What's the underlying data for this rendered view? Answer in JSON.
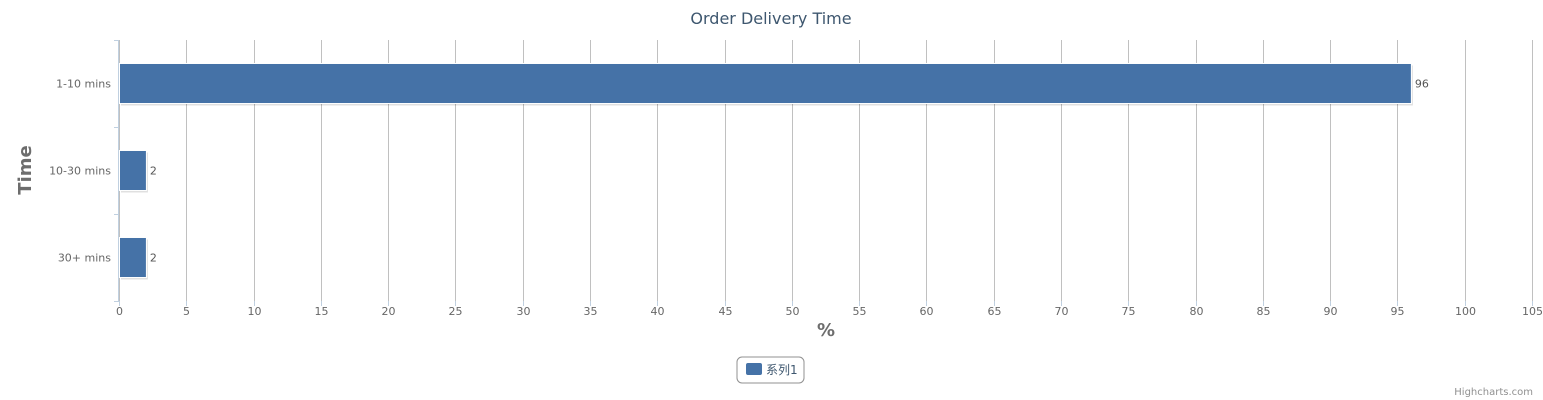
{
  "chart_data": {
    "type": "bar",
    "orientation": "horizontal",
    "title": "Order Delivery Time",
    "xlabel": "Time",
    "ylabel": "%",
    "categories": [
      "1-10 mins",
      "10-30 mins",
      "30+ mins"
    ],
    "series": [
      {
        "name": "系列1",
        "values": [
          96,
          2,
          2
        ],
        "color": "#4572a7"
      }
    ],
    "value_ticks": [
      0,
      5,
      10,
      15,
      20,
      25,
      30,
      35,
      40,
      45,
      50,
      55,
      60,
      65,
      70,
      75,
      80,
      85,
      90,
      95,
      100,
      105
    ],
    "ylim": [
      0,
      105
    ],
    "grid": true,
    "data_labels": true,
    "legend_placement": "bottom-center"
  },
  "credits": "Highcharts.com"
}
